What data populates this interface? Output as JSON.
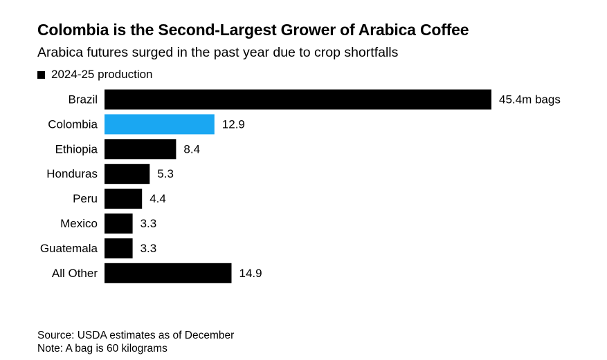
{
  "chart_data": {
    "type": "bar",
    "orientation": "horizontal",
    "title": "Colombia is the Second-Largest Grower of Arabica Coffee",
    "subtitle": "Arabica futures surged in the past year due to crop shortfalls",
    "categories": [
      "Brazil",
      "Colombia",
      "Ethiopia",
      "Honduras",
      "Peru",
      "Mexico",
      "Guatemala",
      "All Other"
    ],
    "series": [
      {
        "name": "2024-25 production",
        "values": [
          45.4,
          12.9,
          8.4,
          5.3,
          4.4,
          3.3,
          3.3,
          14.9
        ],
        "data_labels": [
          "45.4m bags",
          "12.9",
          "8.4",
          "5.3",
          "4.4",
          "3.3",
          "3.3",
          "14.9"
        ]
      }
    ],
    "highlight_category": "Colombia",
    "colors": {
      "default_bar": "#000000",
      "highlight_bar": "#1aa7f2"
    },
    "legend_position": "top-left",
    "grid": false,
    "xlim": [
      0,
      45.4
    ]
  },
  "footer": {
    "source": "Source: USDA estimates as of December",
    "note": "Note: A bag is 60 kilograms"
  }
}
